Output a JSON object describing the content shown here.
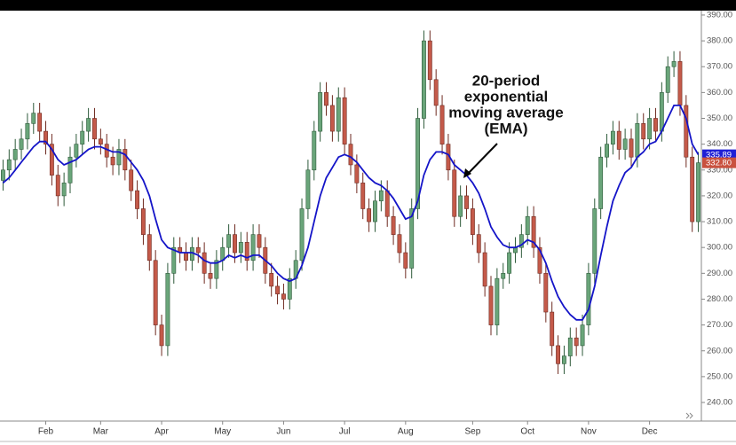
{
  "chart_data": {
    "type": "candlestick",
    "annotation": [
      "20-period",
      "exponential",
      "moving average",
      "(EMA)"
    ],
    "categories": [
      null,
      null,
      null,
      null,
      null,
      null,
      null,
      "Feb",
      null,
      null,
      null,
      null,
      null,
      null,
      null,
      null,
      "Mar",
      null,
      null,
      null,
      null,
      null,
      null,
      null,
      null,
      null,
      "Apr",
      null,
      null,
      null,
      null,
      null,
      null,
      null,
      null,
      null,
      "May",
      null,
      null,
      null,
      null,
      null,
      null,
      null,
      null,
      null,
      "Jun",
      null,
      null,
      null,
      null,
      null,
      null,
      null,
      null,
      null,
      "Jul",
      null,
      null,
      null,
      null,
      null,
      null,
      null,
      null,
      null,
      "Aug",
      null,
      null,
      null,
      null,
      null,
      null,
      null,
      null,
      null,
      null,
      "Sep",
      null,
      null,
      null,
      null,
      null,
      null,
      null,
      null,
      "Oct",
      null,
      null,
      null,
      null,
      null,
      null,
      null,
      null,
      null,
      "Nov",
      null,
      null,
      null,
      null,
      null,
      null,
      null,
      null,
      null,
      "Dec",
      null,
      null,
      null,
      null,
      null,
      null,
      null,
      null
    ],
    "candles": {
      "open": [
        326,
        330,
        334,
        338,
        342,
        348,
        352,
        345,
        340,
        328,
        320,
        325,
        335,
        340,
        345,
        350,
        342,
        340,
        335,
        332,
        338,
        330,
        322,
        315,
        305,
        295,
        270,
        262,
        290,
        300,
        298,
        295,
        300,
        298,
        290,
        288,
        295,
        300,
        305,
        298,
        302,
        295,
        305,
        300,
        290,
        285,
        282,
        280,
        288,
        295,
        315,
        330,
        345,
        360,
        355,
        345,
        358,
        340,
        332,
        325,
        315,
        310,
        318,
        322,
        312,
        305,
        298,
        292,
        315,
        350,
        380,
        365,
        355,
        340,
        330,
        312,
        320,
        315,
        305,
        298,
        285,
        270,
        288,
        290,
        298,
        300,
        305,
        312,
        300,
        290,
        275,
        262,
        255,
        258,
        265,
        262,
        270,
        290,
        315,
        335,
        340,
        345,
        338,
        342,
        335,
        348,
        342,
        350,
        345,
        360,
        370,
        372,
        355,
        335,
        310
      ],
      "high": [
        334,
        338,
        342,
        346,
        352,
        356,
        356,
        349,
        344,
        332,
        329,
        339,
        344,
        349,
        354,
        354,
        346,
        344,
        339,
        342,
        342,
        334,
        326,
        319,
        309,
        299,
        274,
        294,
        304,
        304,
        302,
        304,
        304,
        302,
        294,
        299,
        304,
        309,
        309,
        306,
        306,
        309,
        309,
        304,
        294,
        289,
        286,
        292,
        299,
        319,
        334,
        349,
        364,
        364,
        359,
        362,
        362,
        344,
        336,
        329,
        319,
        322,
        326,
        326,
        316,
        309,
        302,
        319,
        354,
        384,
        384,
        369,
        359,
        344,
        334,
        324,
        324,
        319,
        309,
        302,
        289,
        292,
        294,
        302,
        304,
        309,
        316,
        316,
        304,
        294,
        279,
        266,
        262,
        269,
        269,
        274,
        294,
        319,
        339,
        344,
        349,
        349,
        346,
        346,
        352,
        352,
        354,
        354,
        364,
        374,
        376,
        376,
        359,
        339,
        337
      ],
      "low": [
        322,
        326,
        330,
        334,
        338,
        344,
        341,
        336,
        324,
        316,
        316,
        321,
        331,
        336,
        341,
        338,
        336,
        331,
        328,
        328,
        326,
        318,
        311,
        301,
        291,
        266,
        258,
        258,
        286,
        294,
        291,
        291,
        294,
        286,
        284,
        284,
        291,
        296,
        294,
        294,
        291,
        291,
        296,
        286,
        281,
        278,
        276,
        276,
        284,
        291,
        311,
        326,
        341,
        351,
        341,
        341,
        336,
        328,
        321,
        311,
        306,
        306,
        314,
        308,
        301,
        294,
        288,
        288,
        311,
        346,
        361,
        351,
        336,
        326,
        308,
        308,
        311,
        301,
        294,
        281,
        266,
        266,
        284,
        286,
        294,
        296,
        301,
        296,
        286,
        271,
        258,
        251,
        251,
        254,
        258,
        258,
        266,
        286,
        311,
        331,
        336,
        334,
        334,
        331,
        331,
        338,
        338,
        341,
        341,
        356,
        366,
        351,
        331,
        306,
        306
      ],
      "close": [
        330,
        334,
        338,
        342,
        348,
        352,
        345,
        340,
        328,
        320,
        325,
        335,
        340,
        345,
        350,
        342,
        340,
        335,
        332,
        338,
        330,
        322,
        315,
        305,
        295,
        270,
        262,
        290,
        300,
        298,
        295,
        300,
        298,
        290,
        288,
        295,
        300,
        305,
        298,
        302,
        295,
        305,
        300,
        290,
        285,
        282,
        280,
        288,
        295,
        315,
        330,
        345,
        360,
        355,
        345,
        358,
        340,
        332,
        325,
        315,
        310,
        318,
        322,
        312,
        305,
        298,
        292,
        315,
        350,
        380,
        365,
        355,
        340,
        330,
        312,
        320,
        315,
        305,
        298,
        285,
        270,
        288,
        290,
        298,
        300,
        305,
        312,
        300,
        290,
        275,
        262,
        255,
        258,
        265,
        262,
        270,
        290,
        315,
        335,
        340,
        345,
        338,
        342,
        335,
        348,
        342,
        350,
        345,
        360,
        370,
        372,
        355,
        335,
        310,
        332.8
      ]
    },
    "up_color": "#6aa57a",
    "down_color": "#c45a4a",
    "ema": {
      "color": "#1414c8",
      "values": [
        325,
        327,
        330,
        333,
        336,
        339,
        341,
        341,
        338,
        334,
        332,
        333,
        334,
        336,
        338,
        339,
        339,
        338,
        337,
        337,
        336,
        333,
        330,
        326,
        320,
        311,
        303,
        300,
        299,
        298,
        298,
        298,
        297,
        295,
        294,
        294,
        295,
        297,
        296,
        297,
        296,
        297,
        297,
        295,
        293,
        290,
        288,
        287,
        288,
        293,
        300,
        310,
        320,
        327,
        331,
        335,
        336,
        335,
        333,
        330,
        327,
        325,
        324,
        322,
        319,
        315,
        311,
        312,
        318,
        328,
        334,
        337,
        337,
        336,
        332,
        330,
        328,
        325,
        321,
        315,
        308,
        304,
        301,
        300,
        300,
        301,
        303,
        302,
        299,
        294,
        287,
        281,
        277,
        274,
        272,
        272,
        276,
        285,
        297,
        308,
        318,
        324,
        329,
        331,
        335,
        337,
        340,
        341,
        345,
        350,
        355,
        355,
        350,
        340,
        335.89
      ]
    },
    "badges": [
      {
        "value": 335.89,
        "color": "#1f1fd6"
      },
      {
        "value": 332.8,
        "label": "332.80",
        "color": "#c9513f"
      }
    ],
    "ylim": [
      232.8,
      391.7
    ],
    "yticks": [
      {
        "value": 240,
        "label": "240.00"
      },
      {
        "value": 250,
        "label": "250.00"
      },
      {
        "value": 260,
        "label": "260.00"
      },
      {
        "value": 270,
        "label": "270.00"
      },
      {
        "value": 280,
        "label": "280.00"
      },
      {
        "value": 290,
        "label": "290.00"
      },
      {
        "value": 300,
        "label": "300.00"
      },
      {
        "value": 310,
        "label": "310.00"
      },
      {
        "value": 320,
        "label": "320.00"
      },
      {
        "value": 330,
        "label": "330.00"
      },
      {
        "value": 340,
        "label": "340.00"
      },
      {
        "value": 350,
        "label": "350.00"
      },
      {
        "value": 360,
        "label": "360.00"
      },
      {
        "value": 370,
        "label": "370.00"
      },
      {
        "value": 380,
        "label": "380.00"
      },
      {
        "value": 390,
        "label": "390.00"
      }
    ]
  }
}
